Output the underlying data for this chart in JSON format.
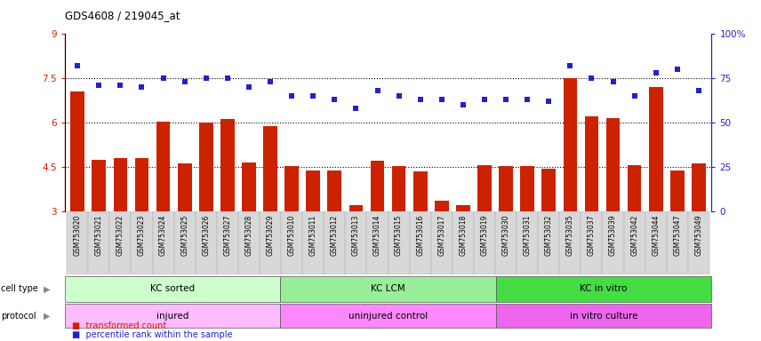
{
  "title": "GDS4608 / 219045_at",
  "samples": [
    "GSM753020",
    "GSM753021",
    "GSM753022",
    "GSM753023",
    "GSM753024",
    "GSM753025",
    "GSM753026",
    "GSM753027",
    "GSM753028",
    "GSM753029",
    "GSM753010",
    "GSM753011",
    "GSM753012",
    "GSM753013",
    "GSM753014",
    "GSM753015",
    "GSM753016",
    "GSM753017",
    "GSM753018",
    "GSM753019",
    "GSM753030",
    "GSM753031",
    "GSM753032",
    "GSM753035",
    "GSM753037",
    "GSM753039",
    "GSM753042",
    "GSM753044",
    "GSM753047",
    "GSM753049"
  ],
  "bar_values": [
    7.05,
    4.75,
    4.82,
    4.82,
    6.05,
    4.63,
    6.02,
    6.12,
    4.65,
    5.88,
    4.52,
    4.38,
    4.38,
    3.22,
    4.72,
    4.52,
    4.35,
    3.35,
    3.22,
    4.55,
    4.52,
    4.52,
    4.45,
    7.52,
    6.22,
    6.15,
    4.55,
    7.22,
    4.38,
    4.62
  ],
  "blue_values": [
    82,
    71,
    71,
    70,
    75,
    73,
    75,
    75,
    70,
    73,
    65,
    65,
    63,
    58,
    68,
    65,
    63,
    63,
    60,
    63,
    63,
    63,
    62,
    82,
    75,
    73,
    65,
    78,
    80,
    68
  ],
  "bar_color": "#cc2200",
  "blue_color": "#2222cc",
  "ylim_left": [
    3,
    9
  ],
  "ylim_right": [
    0,
    100
  ],
  "yticks_left": [
    3,
    4.5,
    6,
    7.5,
    9
  ],
  "ytick_labels_left": [
    "3",
    "4.5",
    "6",
    "7.5",
    "9"
  ],
  "yticks_right": [
    0,
    25,
    50,
    75,
    100
  ],
  "ytick_labels_right": [
    "0",
    "25",
    "50",
    "75",
    "100%"
  ],
  "hlines": [
    4.5,
    6.0,
    7.5
  ],
  "ct_groups": [
    {
      "label": "KC sorted",
      "start": 0,
      "end": 10,
      "color": "#ccffcc"
    },
    {
      "label": "KC LCM",
      "start": 10,
      "end": 20,
      "color": "#99ee99"
    },
    {
      "label": "KC in vitro",
      "start": 20,
      "end": 30,
      "color": "#44dd44"
    }
  ],
  "proto_groups": [
    {
      "label": "injured",
      "start": 0,
      "end": 10,
      "color": "#ffbbff"
    },
    {
      "label": "uninjured control",
      "start": 10,
      "end": 20,
      "color": "#ff88ff"
    },
    {
      "label": "in vitro culture",
      "start": 20,
      "end": 30,
      "color": "#ee66ee"
    }
  ],
  "cell_type_label": "cell type",
  "protocol_label": "protocol",
  "legend_bar": "transformed count",
  "legend_dot": "percentile rank within the sample"
}
